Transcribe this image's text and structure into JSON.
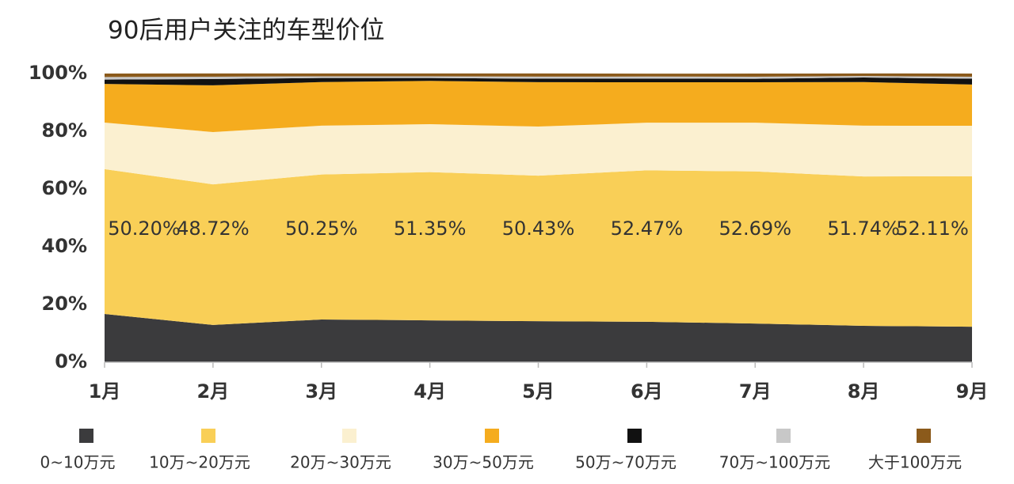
{
  "chart_data": {
    "type": "stacked_area",
    "title": "90后用户关注的车型价位",
    "categories": [
      "1月",
      "2月",
      "3月",
      "4月",
      "5月",
      "6月",
      "7月",
      "8月",
      "9月"
    ],
    "ylim": [
      0,
      100
    ],
    "yticks": [
      {
        "value": 0,
        "label": "0%"
      },
      {
        "value": 20,
        "label": "20%"
      },
      {
        "value": 40,
        "label": "40%"
      },
      {
        "value": 60,
        "label": "60%"
      },
      {
        "value": 80,
        "label": "80%"
      },
      {
        "value": 100,
        "label": "100%"
      }
    ],
    "series": [
      {
        "name": "0~10万元",
        "color": "#3b3b3d",
        "values": [
          16.7,
          12.9,
          14.8,
          14.5,
          14.2,
          14.0,
          13.4,
          12.6,
          12.3
        ]
      },
      {
        "name": "10万~20万元",
        "color": "#f9cf57",
        "values": [
          50.2,
          48.72,
          50.25,
          51.35,
          50.43,
          52.47,
          52.69,
          51.74,
          52.11
        ],
        "value_labels": [
          "50.20%",
          "48.72%",
          "50.25%",
          "51.35%",
          "50.43%",
          "52.47%",
          "52.69%",
          "51.74%",
          "52.11%"
        ]
      },
      {
        "name": "20万~30万元",
        "color": "#fbf0d0",
        "values": [
          16.1,
          18.1,
          16.9,
          16.6,
          17.0,
          16.5,
          16.9,
          17.6,
          17.5
        ]
      },
      {
        "name": "30万~50万元",
        "color": "#f5ac1e",
        "values": [
          13.4,
          16.2,
          15.1,
          15.0,
          15.4,
          14.0,
          14.0,
          15.1,
          14.3
        ]
      },
      {
        "name": "50万~70万元",
        "color": "#111111",
        "values": [
          1.5,
          2.2,
          1.4,
          1.0,
          1.2,
          1.3,
          1.2,
          1.6,
          2.0
        ]
      },
      {
        "name": "70万~100万元",
        "color": "#c8c8c8",
        "values": [
          0.9,
          0.8,
          0.6,
          0.6,
          0.7,
          0.7,
          0.7,
          0.5,
          0.7
        ]
      },
      {
        "name": "大于100万元",
        "color": "#8b5a1b",
        "values": [
          1.2,
          1.1,
          1.0,
          1.0,
          1.1,
          1.0,
          1.1,
          0.9,
          1.1
        ]
      }
    ]
  }
}
